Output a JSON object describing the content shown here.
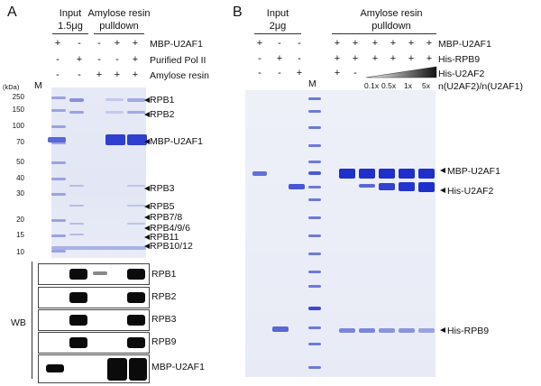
{
  "panel_a": {
    "letter": "A",
    "input_header": [
      "Input",
      "1.5μg"
    ],
    "pulldown_header": [
      "Amylose resin",
      "pulldown"
    ],
    "rows": [
      {
        "label": "MBP-U2AF1",
        "signs": [
          "+",
          "-",
          "-",
          "+",
          "+"
        ]
      },
      {
        "label": "Purified Pol II",
        "signs": [
          "-",
          "+",
          "-",
          "-",
          "+"
        ]
      },
      {
        "label": "Amylose resin",
        "signs": [
          "-",
          "-",
          "+",
          "+",
          "+"
        ]
      }
    ],
    "kda_label": "(kDa)",
    "marker_label": "M",
    "mw_markers": [
      "250",
      "150",
      "100",
      "70",
      "50",
      "40",
      "30",
      "20",
      "15",
      "10"
    ],
    "band_labels": [
      "RPB1",
      "RPB2",
      "MBP-U2AF1",
      "RPB3",
      "RPB5",
      "RPB7/8",
      "RPB4/9/6",
      "RPB11",
      "RPB10/12"
    ],
    "wb_label": "WB",
    "wb_labels": [
      "RPB1",
      "RPB2",
      "RPB3",
      "RPB9",
      "MBP-U2AF1"
    ]
  },
  "panel_b": {
    "letter": "B",
    "input_header": [
      "Input",
      "2μg"
    ],
    "pulldown_header": [
      "Amylose resin",
      "pulldown"
    ],
    "marker_label": "M",
    "rows": [
      {
        "label": "MBP-U2AF1",
        "signs": [
          "+",
          "-",
          "-",
          "+",
          "+",
          "+",
          "+",
          "+",
          "+"
        ]
      },
      {
        "label": "His-RPB9",
        "signs": [
          "-",
          "+",
          "-",
          "+",
          "+",
          "+",
          "+",
          "+",
          "+"
        ]
      },
      {
        "label": "His-U2AF2",
        "signs": [
          "-",
          "-",
          "+",
          "+",
          "-"
        ]
      }
    ],
    "ratio_label": "n(U2AF2)/n(U2AF1)",
    "ratios": [
      "0.1x",
      "0.5x",
      "1x",
      "5x"
    ],
    "band_labels": [
      "MBP-U2AF1",
      "His-U2AF2",
      "His-RPB9"
    ]
  },
  "colors": {
    "coomassie": "#2f3fcf",
    "coomassie_light": "#8d98e0",
    "blot": "#0b0b0b"
  }
}
